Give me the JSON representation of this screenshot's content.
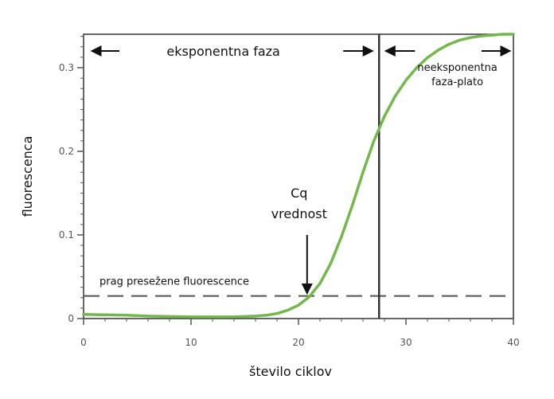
{
  "chart_data": {
    "type": "line",
    "title": "",
    "xlabel": "število ciklov",
    "ylabel": "fluorescenca",
    "xlim": [
      0,
      40
    ],
    "ylim": [
      0,
      0.34
    ],
    "x_ticks": [
      0,
      10,
      20,
      30,
      40
    ],
    "y_ticks": [
      0,
      0.1,
      0.2,
      0.3
    ],
    "y_tick_labels": [
      "0",
      "0.1",
      "0.2",
      "0.3"
    ],
    "grid": false,
    "series": [
      {
        "name": "",
        "color": "#72b84a",
        "x": [
          0,
          2,
          4,
          6,
          8,
          10,
          12,
          14,
          16,
          17,
          18,
          19,
          20,
          21,
          22,
          23,
          24,
          25,
          26,
          27,
          28,
          29,
          30,
          31,
          32,
          33,
          34,
          35,
          36,
          37,
          38,
          39,
          40
        ],
        "y": [
          0.005,
          0.0045,
          0.004,
          0.003,
          0.0025,
          0.002,
          0.002,
          0.002,
          0.003,
          0.004,
          0.006,
          0.01,
          0.016,
          0.026,
          0.042,
          0.066,
          0.098,
          0.135,
          0.175,
          0.212,
          0.242,
          0.266,
          0.285,
          0.3,
          0.312,
          0.321,
          0.328,
          0.333,
          0.336,
          0.338,
          0.339,
          0.34,
          0.34
        ]
      }
    ],
    "threshold": {
      "value": 0.027,
      "label": "prag presežene fluorescence",
      "color": "#555555"
    },
    "divider_x": 27.5,
    "cq": {
      "x": 20.8,
      "label_line1": "Cq",
      "label_line2": "vrednost"
    },
    "phases": {
      "exponential": {
        "label": "eksponentna faza",
        "from": 0,
        "to": 27.5
      },
      "plateau": {
        "label_line1": "neeksponentna",
        "label_line2": "faza-plato",
        "from": 27.5,
        "to": 40
      }
    }
  }
}
